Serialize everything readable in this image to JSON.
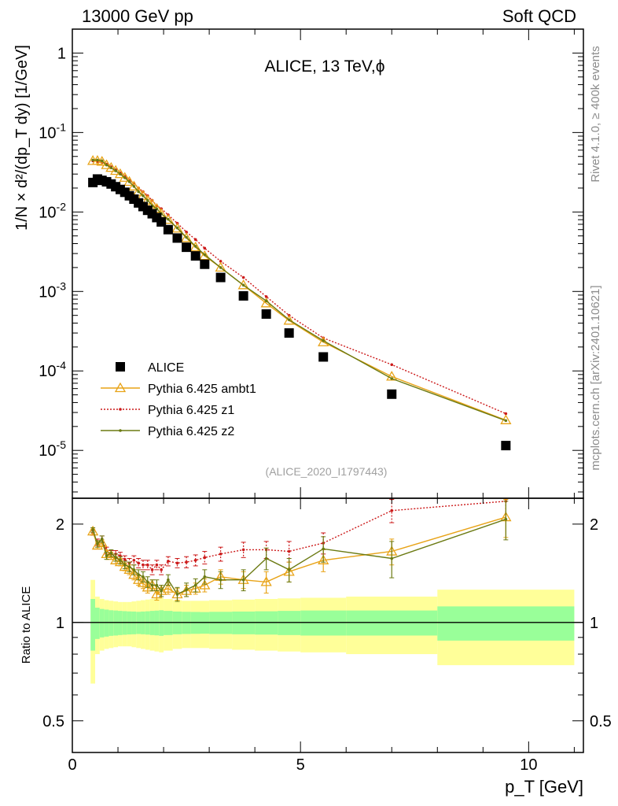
{
  "header": {
    "left_label": "13000 GeV pp",
    "right_label": "Soft QCD"
  },
  "side_labels": {
    "rivet": "Rivet 4.1.0, ≥ 400k events",
    "mcplots": "mcplots.cern.ch [arXiv:2401.10621]"
  },
  "colors": {
    "alice": "#000000",
    "ambt1": "#e8a317",
    "z1": "#cc1a1a",
    "z2": "#6b7a12",
    "band_inner": "#99ff99",
    "band_outer": "#ffff99"
  },
  "chart_data": [
    {
      "type": "scatter",
      "title": "ALICE, 13 TeV,ϕ",
      "analysis_id": "(ALICE_2020_I1797443)",
      "ylabel": "1/N × d²/(dp_T dy) [1/GeV]",
      "yscale": "log",
      "xlim": [
        0,
        11.2
      ],
      "ylim": [
        2.5e-06,
        2
      ],
      "y_ticks": [
        {
          "value": 1,
          "label": "1"
        },
        {
          "value": 0.1,
          "label": "10^-1"
        },
        {
          "value": 0.01,
          "label": "10^-2"
        },
        {
          "value": 0.001,
          "label": "10^-3"
        },
        {
          "value": 0.0001,
          "label": "10^-4"
        },
        {
          "value": 1e-05,
          "label": "10^-5"
        }
      ],
      "x": [
        0.45,
        0.55,
        0.65,
        0.75,
        0.85,
        0.95,
        1.05,
        1.15,
        1.25,
        1.35,
        1.45,
        1.55,
        1.65,
        1.75,
        1.85,
        1.95,
        2.1,
        2.3,
        2.5,
        2.7,
        2.9,
        3.25,
        3.75,
        4.25,
        4.75,
        5.5,
        7.0,
        9.5
      ],
      "legend": [
        {
          "key": "alice",
          "label": "ALICE"
        },
        {
          "key": "ambt1",
          "label": "Pythia 6.425 ambt1"
        },
        {
          "key": "z1",
          "label": "Pythia 6.425 z1"
        },
        {
          "key": "z2",
          "label": "Pythia 6.425 z2"
        }
      ],
      "series": [
        {
          "key": "alice",
          "name": "ALICE",
          "marker": "square",
          "values": [
            0.0235,
            0.026,
            0.025,
            0.024,
            0.0225,
            0.0208,
            0.0192,
            0.0177,
            0.016,
            0.0145,
            0.013,
            0.0117,
            0.0105,
            0.0095,
            0.0085,
            0.0075,
            0.006,
            0.0047,
            0.0036,
            0.0028,
            0.0022,
            0.0015,
            0.00088,
            0.00052,
            0.0003,
            0.00015,
            5.1e-05,
            1.15e-05
          ]
        },
        {
          "key": "ambt1",
          "name": "Pythia 6.425 ambt1",
          "marker": "triangle",
          "values": [
            0.044,
            0.044,
            0.043,
            0.039,
            0.036,
            0.033,
            0.03,
            0.027,
            0.024,
            0.021,
            0.018,
            0.016,
            0.014,
            0.0125,
            0.011,
            0.0095,
            0.008,
            0.0062,
            0.0047,
            0.0036,
            0.0028,
            0.002,
            0.0012,
            0.00071,
            0.00043,
            0.00023,
            8.5e-05,
            2.4e-05
          ]
        },
        {
          "key": "z1",
          "name": "Pythia 6.425 z1",
          "marker": "dot",
          "values": [
            0.044,
            0.043,
            0.042,
            0.04,
            0.037,
            0.034,
            0.031,
            0.028,
            0.025,
            0.023,
            0.02,
            0.018,
            0.016,
            0.014,
            0.012,
            0.011,
            0.0092,
            0.0072,
            0.0056,
            0.0045,
            0.0035,
            0.0024,
            0.0015,
            0.00086,
            0.0005,
            0.00026,
            0.00012,
            2.9e-05
          ]
        },
        {
          "key": "z2",
          "name": "Pythia 6.425 z2",
          "marker": "dot",
          "values": [
            0.045,
            0.045,
            0.044,
            0.039,
            0.036,
            0.033,
            0.03,
            0.027,
            0.024,
            0.021,
            0.018,
            0.016,
            0.014,
            0.012,
            0.011,
            0.0095,
            0.0081,
            0.0063,
            0.0048,
            0.0037,
            0.0029,
            0.002,
            0.0012,
            0.00076,
            0.00044,
            0.00024,
            8e-05,
            2.37e-05
          ]
        }
      ]
    },
    {
      "type": "line",
      "ylabel": "Ratio to ALICE",
      "xlabel": "p_T [GeV]",
      "yscale": "log",
      "xlim": [
        0,
        11.2
      ],
      "ylim": [
        0.4,
        2.4
      ],
      "x_ticks": [
        0,
        5,
        10
      ],
      "y_ticks": [
        {
          "value": 0.5,
          "label": "0.5"
        },
        {
          "value": 1,
          "label": "1"
        },
        {
          "value": 2,
          "label": "2"
        }
      ],
      "x": [
        0.45,
        0.55,
        0.65,
        0.75,
        0.85,
        0.95,
        1.05,
        1.15,
        1.25,
        1.35,
        1.45,
        1.55,
        1.65,
        1.75,
        1.85,
        1.95,
        2.1,
        2.3,
        2.5,
        2.7,
        2.9,
        3.25,
        3.75,
        4.25,
        4.75,
        5.5,
        7.0,
        9.5
      ],
      "series": [
        {
          "key": "ambt1",
          "name": "Pythia 6.425 ambt1",
          "values": [
            1.9,
            1.72,
            1.75,
            1.62,
            1.6,
            1.55,
            1.53,
            1.48,
            1.45,
            1.4,
            1.35,
            1.32,
            1.28,
            1.3,
            1.22,
            1.25,
            1.27,
            1.22,
            1.25,
            1.27,
            1.3,
            1.38,
            1.35,
            1.33,
            1.43,
            1.55,
            1.65,
            2.1
          ],
          "errors": [
            0.03,
            0.04,
            0.04,
            0.04,
            0.04,
            0.04,
            0.04,
            0.04,
            0.05,
            0.05,
            0.05,
            0.05,
            0.05,
            0.05,
            0.05,
            0.05,
            0.05,
            0.05,
            0.05,
            0.05,
            0.06,
            0.07,
            0.08,
            0.1,
            0.1,
            0.12,
            0.15,
            0.28
          ]
        },
        {
          "key": "z1",
          "name": "Pythia 6.425 z1",
          "values": [
            1.88,
            1.76,
            1.8,
            1.66,
            1.62,
            1.62,
            1.6,
            1.56,
            1.52,
            1.55,
            1.52,
            1.5,
            1.5,
            1.45,
            1.5,
            1.45,
            1.54,
            1.52,
            1.53,
            1.55,
            1.58,
            1.62,
            1.67,
            1.67,
            1.65,
            1.75,
            2.2,
            2.35
          ],
          "errors": [
            0.03,
            0.04,
            0.04,
            0.04,
            0.04,
            0.04,
            0.04,
            0.04,
            0.05,
            0.05,
            0.05,
            0.05,
            0.05,
            0.05,
            0.05,
            0.05,
            0.05,
            0.05,
            0.06,
            0.06,
            0.07,
            0.08,
            0.09,
            0.1,
            0.12,
            0.13,
            0.18,
            0.3
          ]
        },
        {
          "key": "z2",
          "name": "Pythia 6.425 z2",
          "values": [
            1.92,
            1.74,
            1.8,
            1.6,
            1.63,
            1.58,
            1.55,
            1.5,
            1.48,
            1.45,
            1.4,
            1.38,
            1.33,
            1.3,
            1.3,
            1.25,
            1.35,
            1.22,
            1.26,
            1.3,
            1.38,
            1.35,
            1.35,
            1.57,
            1.45,
            1.68,
            1.57,
            2.07
          ],
          "errors": [
            0.03,
            0.04,
            0.04,
            0.04,
            0.04,
            0.04,
            0.04,
            0.04,
            0.05,
            0.05,
            0.05,
            0.05,
            0.05,
            0.05,
            0.05,
            0.05,
            0.05,
            0.06,
            0.06,
            0.06,
            0.07,
            0.08,
            0.1,
            0.12,
            0.12,
            0.15,
            0.2,
            0.28
          ]
        }
      ],
      "uncertainty_band": {
        "x_edges": [
          0.4,
          0.5,
          0.6,
          0.7,
          0.8,
          0.9,
          1.0,
          1.1,
          1.2,
          1.3,
          1.4,
          1.5,
          1.6,
          1.7,
          1.8,
          1.9,
          2.0,
          2.2,
          2.4,
          2.6,
          2.8,
          3.0,
          3.5,
          4.0,
          4.5,
          5.0,
          6.0,
          8.0,
          11.0
        ],
        "inner_half_width": [
          0.18,
          0.11,
          0.1,
          0.095,
          0.09,
          0.088,
          0.085,
          0.083,
          0.081,
          0.08,
          0.078,
          0.08,
          0.082,
          0.085,
          0.087,
          0.09,
          0.085,
          0.08,
          0.078,
          0.077,
          0.076,
          0.078,
          0.08,
          0.082,
          0.085,
          0.088,
          0.088,
          0.12
        ],
        "outer_half_width": [
          0.35,
          0.2,
          0.18,
          0.17,
          0.165,
          0.16,
          0.155,
          0.155,
          0.155,
          0.16,
          0.165,
          0.17,
          0.175,
          0.18,
          0.185,
          0.19,
          0.18,
          0.17,
          0.165,
          0.165,
          0.165,
          0.17,
          0.175,
          0.18,
          0.185,
          0.19,
          0.2,
          0.26
        ]
      }
    }
  ]
}
